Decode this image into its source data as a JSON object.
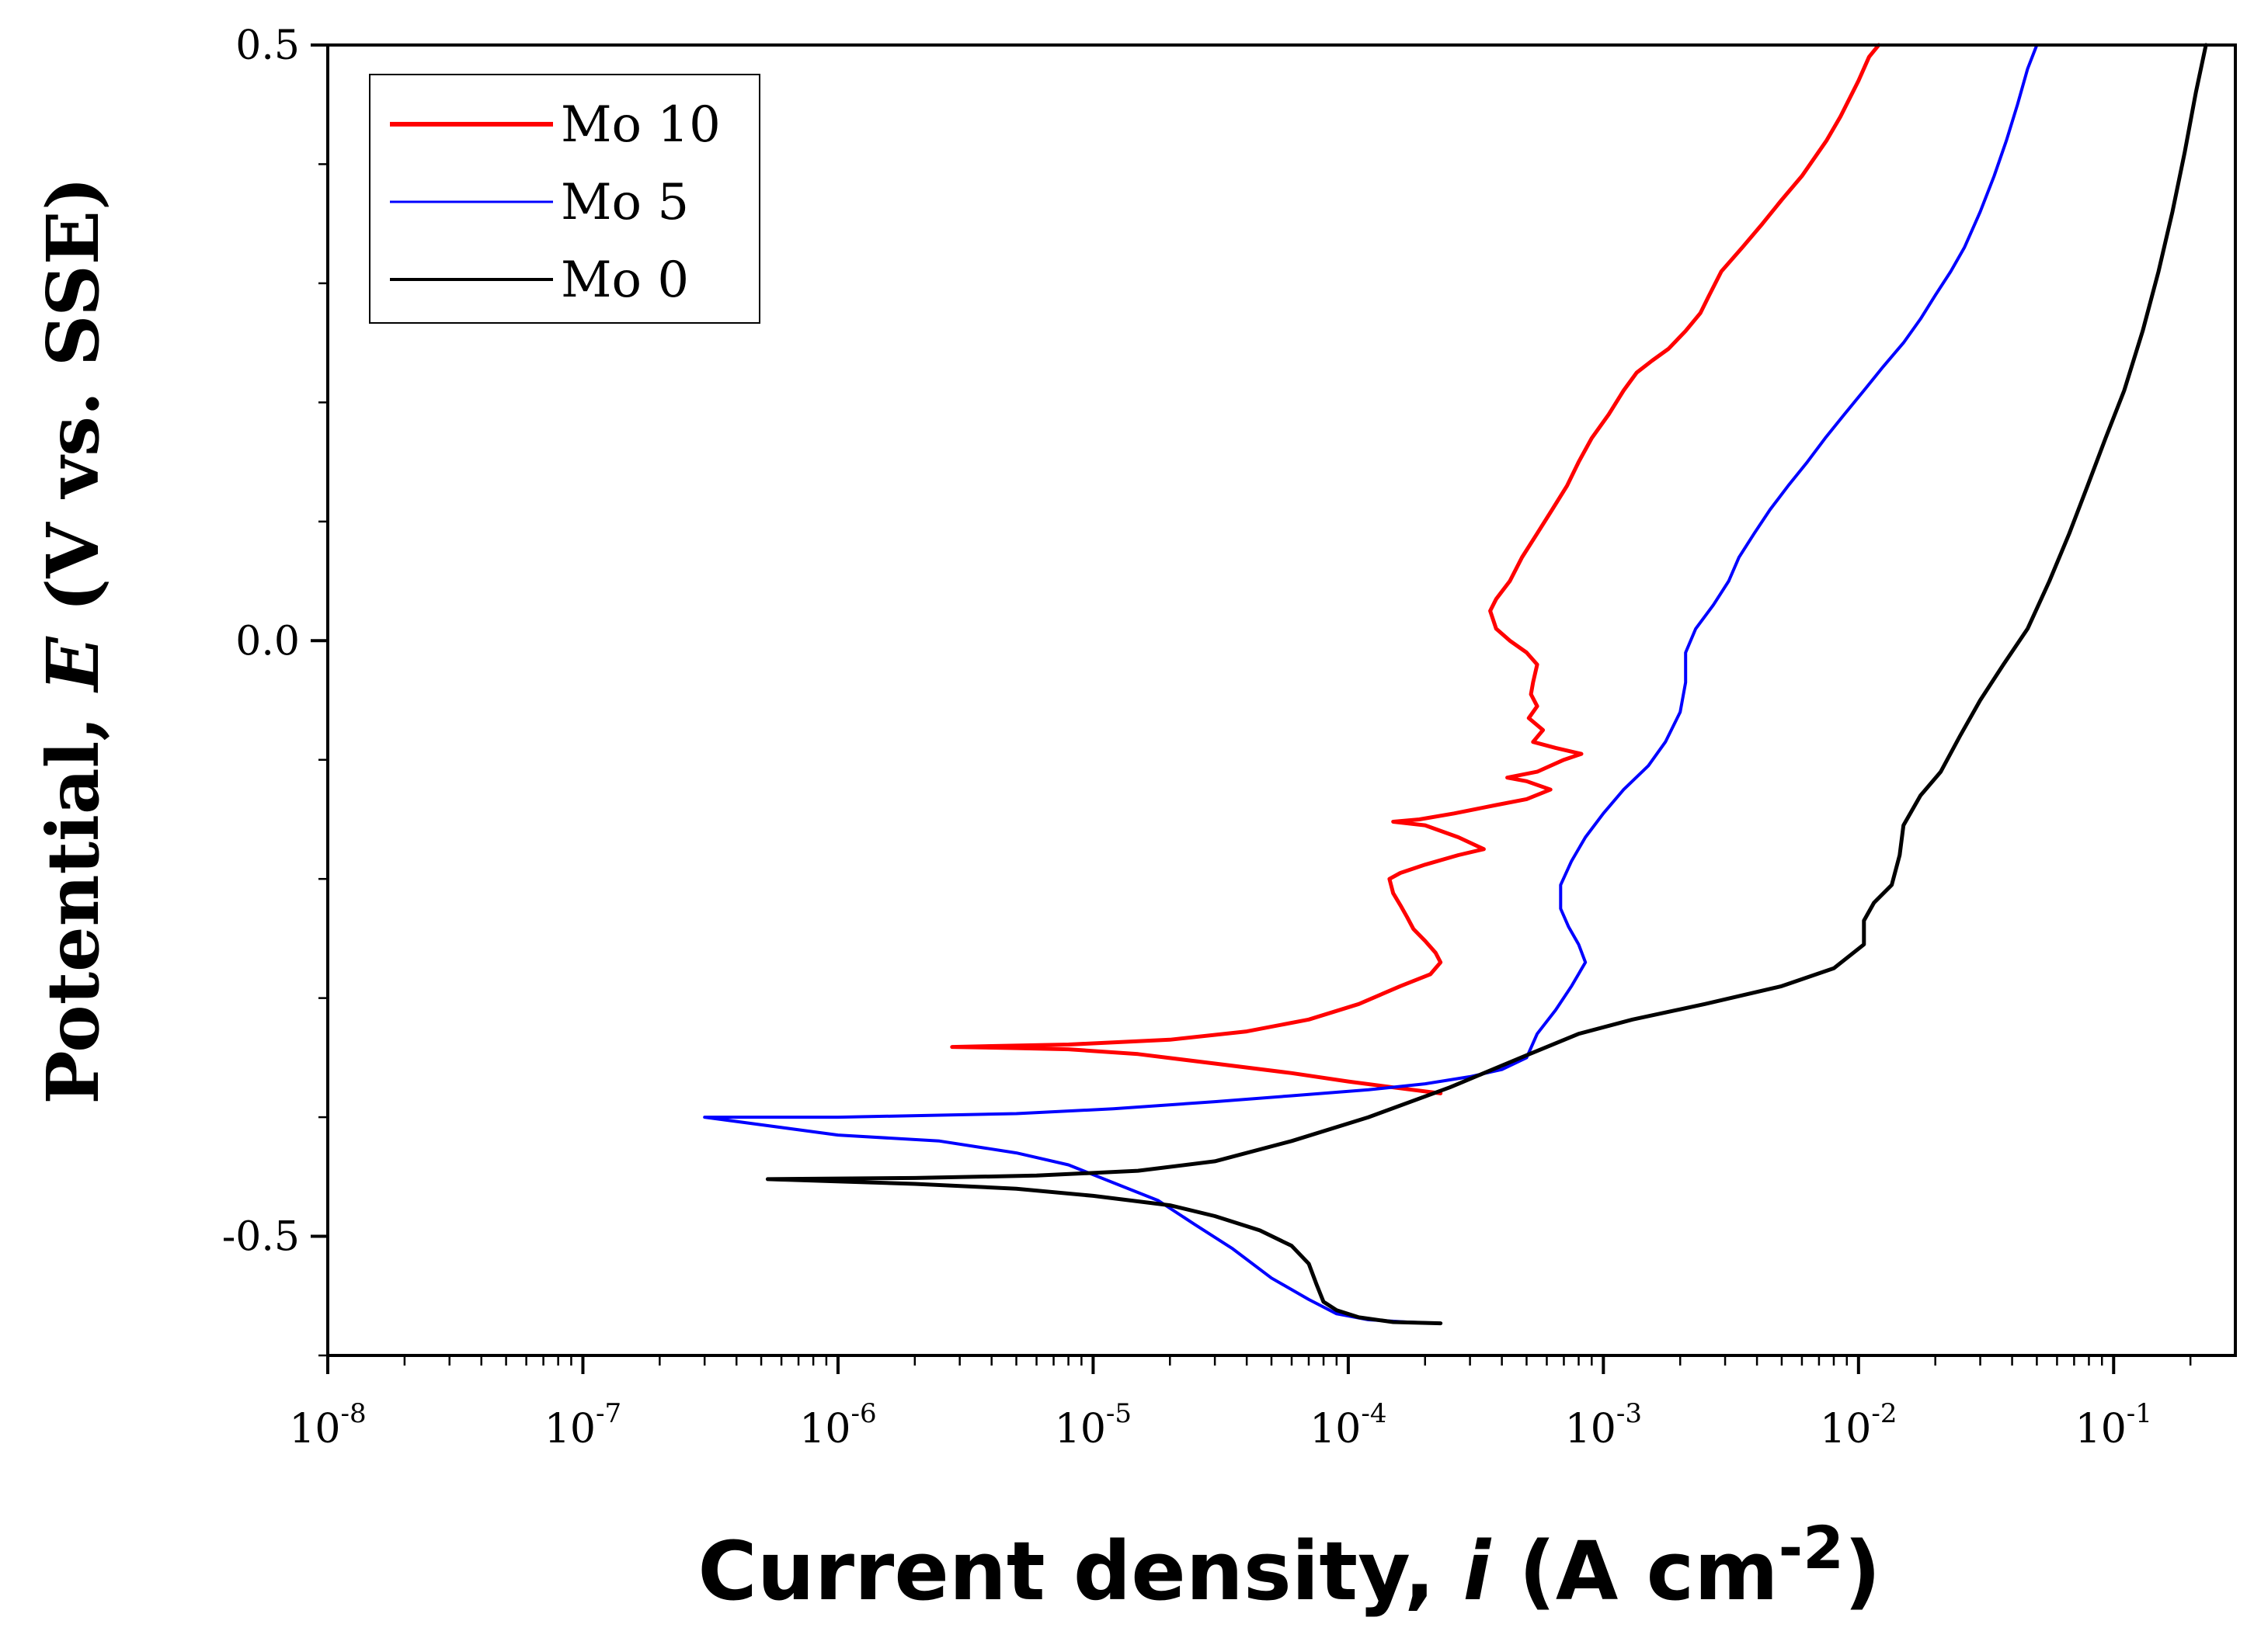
{
  "chart_data": {
    "type": "line",
    "title": "",
    "xlabel": {
      "prefix": "Current density, ",
      "variable": "i",
      "unit_open": " (A cm",
      "unit_sup": "-2",
      "unit_close": ")"
    },
    "ylabel": {
      "prefix": "Potential, ",
      "variable": "E",
      "unit": " (V vs. SSE)"
    },
    "xscale": "log",
    "xlim": [
      1e-08,
      0.3
    ],
    "ylim": [
      -0.6,
      0.5
    ],
    "x_ticks": [
      {
        "base": "10",
        "exp": "-8",
        "value": 1e-08
      },
      {
        "base": "10",
        "exp": "-7",
        "value": 1e-07
      },
      {
        "base": "10",
        "exp": "-6",
        "value": 1e-06
      },
      {
        "base": "10",
        "exp": "-5",
        "value": 1e-05
      },
      {
        "base": "10",
        "exp": "-4",
        "value": 0.0001
      },
      {
        "base": "10",
        "exp": "-3",
        "value": 0.001
      },
      {
        "base": "10",
        "exp": "-2",
        "value": 0.01
      },
      {
        "base": "10",
        "exp": "-1",
        "value": 0.1
      }
    ],
    "y_ticks": [
      {
        "label": "0.5",
        "value": 0.5
      },
      {
        "label": "0.0",
        "value": 0.0
      },
      {
        "label": "-0.5",
        "value": -0.5
      }
    ],
    "legend_position": "top-left",
    "grid": false,
    "series": [
      {
        "name": "Mo 10",
        "color": "#ff0000",
        "points": [
          [
            0.00023,
            -0.38
          ],
          [
            0.00015,
            -0.375
          ],
          [
            0.0001,
            -0.37
          ],
          [
            6e-05,
            -0.363
          ],
          [
            3e-05,
            -0.355
          ],
          [
            1.5e-05,
            -0.347
          ],
          [
            8e-06,
            -0.343
          ],
          [
            5e-06,
            -0.342
          ],
          [
            2.8e-06,
            -0.341
          ],
          [
            8e-06,
            -0.339
          ],
          [
            2e-05,
            -0.335
          ],
          [
            4e-05,
            -0.328
          ],
          [
            7e-05,
            -0.318
          ],
          [
            0.00011,
            -0.305
          ],
          [
            0.00016,
            -0.29
          ],
          [
            0.00021,
            -0.28
          ],
          [
            0.00023,
            -0.27
          ],
          [
            0.00022,
            -0.262
          ],
          [
            0.0002,
            -0.252
          ],
          [
            0.00018,
            -0.242
          ],
          [
            0.00017,
            -0.232
          ],
          [
            0.00016,
            -0.222
          ],
          [
            0.00015,
            -0.212
          ],
          [
            0.000145,
            -0.2
          ],
          [
            0.00016,
            -0.195
          ],
          [
            0.0002,
            -0.188
          ],
          [
            0.00027,
            -0.18
          ],
          [
            0.00034,
            -0.175
          ],
          [
            0.00027,
            -0.165
          ],
          [
            0.0002,
            -0.155
          ],
          [
            0.00015,
            -0.152
          ],
          [
            0.00019,
            -0.15
          ],
          [
            0.00026,
            -0.145
          ],
          [
            0.00038,
            -0.138
          ],
          [
            0.0005,
            -0.133
          ],
          [
            0.00062,
            -0.125
          ],
          [
            0.0005,
            -0.118
          ],
          [
            0.00042,
            -0.115
          ],
          [
            0.00055,
            -0.11
          ],
          [
            0.0007,
            -0.1
          ],
          [
            0.00082,
            -0.095
          ],
          [
            0.00065,
            -0.09
          ],
          [
            0.00053,
            -0.085
          ],
          [
            0.00058,
            -0.075
          ],
          [
            0.00051,
            -0.065
          ],
          [
            0.00055,
            -0.055
          ],
          [
            0.00052,
            -0.045
          ],
          [
            0.00053,
            -0.035
          ],
          [
            0.00055,
            -0.02
          ],
          [
            0.0005,
            -0.01
          ],
          [
            0.00043,
            0.0
          ],
          [
            0.00038,
            0.01
          ],
          [
            0.00036,
            0.025
          ],
          [
            0.00038,
            0.035
          ],
          [
            0.00043,
            0.05
          ],
          [
            0.00048,
            0.07
          ],
          [
            0.00055,
            0.09
          ],
          [
            0.00063,
            0.11
          ],
          [
            0.00072,
            0.13
          ],
          [
            0.0008,
            0.15
          ],
          [
            0.0009,
            0.17
          ],
          [
            0.00105,
            0.19
          ],
          [
            0.0012,
            0.21
          ],
          [
            0.00135,
            0.225
          ],
          [
            0.00155,
            0.235
          ],
          [
            0.0018,
            0.245
          ],
          [
            0.0021,
            0.26
          ],
          [
            0.0024,
            0.275
          ],
          [
            0.0026,
            0.29
          ],
          [
            0.0029,
            0.31
          ],
          [
            0.0035,
            0.33
          ],
          [
            0.0042,
            0.35
          ],
          [
            0.005,
            0.37
          ],
          [
            0.006,
            0.39
          ],
          [
            0.0075,
            0.42
          ],
          [
            0.0085,
            0.44
          ],
          [
            0.01,
            0.47
          ],
          [
            0.011,
            0.49
          ],
          [
            0.012,
            0.5
          ]
        ]
      },
      {
        "name": "Mo 5",
        "color": "#0000ff",
        "points": [
          [
            0.00023,
            -0.573
          ],
          [
            0.00017,
            -0.572
          ],
          [
            0.00012,
            -0.57
          ],
          [
            9e-05,
            -0.565
          ],
          [
            7e-05,
            -0.553
          ],
          [
            5e-05,
            -0.535
          ],
          [
            3.5e-05,
            -0.51
          ],
          [
            2.5e-05,
            -0.49
          ],
          [
            1.8e-05,
            -0.47
          ],
          [
            1.2e-05,
            -0.455
          ],
          [
            8e-06,
            -0.44
          ],
          [
            5e-06,
            -0.43
          ],
          [
            2.5e-06,
            -0.42
          ],
          [
            1e-06,
            -0.415
          ],
          [
            3e-07,
            -0.4
          ],
          [
            1e-06,
            -0.4
          ],
          [
            5e-06,
            -0.397
          ],
          [
            1.2e-05,
            -0.393
          ],
          [
            3e-05,
            -0.387
          ],
          [
            6e-05,
            -0.382
          ],
          [
            0.00012,
            -0.377
          ],
          [
            0.0002,
            -0.372
          ],
          [
            0.0003,
            -0.366
          ],
          [
            0.0004,
            -0.36
          ],
          [
            0.0005,
            -0.35
          ],
          [
            0.00055,
            -0.33
          ],
          [
            0.00065,
            -0.31
          ],
          [
            0.00075,
            -0.29
          ],
          [
            0.00085,
            -0.27
          ],
          [
            0.0008,
            -0.255
          ],
          [
            0.00073,
            -0.24
          ],
          [
            0.00068,
            -0.225
          ],
          [
            0.00068,
            -0.205
          ],
          [
            0.00075,
            -0.185
          ],
          [
            0.00085,
            -0.165
          ],
          [
            0.001,
            -0.145
          ],
          [
            0.0012,
            -0.125
          ],
          [
            0.0015,
            -0.105
          ],
          [
            0.00175,
            -0.085
          ],
          [
            0.002,
            -0.06
          ],
          [
            0.0021,
            -0.035
          ],
          [
            0.0021,
            -0.01
          ],
          [
            0.0023,
            0.01
          ],
          [
            0.0027,
            0.03
          ],
          [
            0.0031,
            0.05
          ],
          [
            0.0034,
            0.07
          ],
          [
            0.0039,
            0.09
          ],
          [
            0.0045,
            0.11
          ],
          [
            0.0053,
            0.13
          ],
          [
            0.0063,
            0.15
          ],
          [
            0.0074,
            0.17
          ],
          [
            0.0088,
            0.19
          ],
          [
            0.0105,
            0.21
          ],
          [
            0.0125,
            0.23
          ],
          [
            0.015,
            0.25
          ],
          [
            0.0175,
            0.27
          ],
          [
            0.02,
            0.29
          ],
          [
            0.023,
            0.31
          ],
          [
            0.026,
            0.33
          ],
          [
            0.03,
            0.36
          ],
          [
            0.034,
            0.39
          ],
          [
            0.038,
            0.42
          ],
          [
            0.042,
            0.45
          ],
          [
            0.046,
            0.48
          ],
          [
            0.05,
            0.5
          ]
        ]
      },
      {
        "name": "Mo 0",
        "color": "#000000",
        "points": [
          [
            0.00023,
            -0.573
          ],
          [
            0.00015,
            -0.572
          ],
          [
            0.00011,
            -0.568
          ],
          [
            9e-05,
            -0.562
          ],
          [
            8e-05,
            -0.555
          ],
          [
            7.5e-05,
            -0.54
          ],
          [
            7e-05,
            -0.523
          ],
          [
            6e-05,
            -0.508
          ],
          [
            4.5e-05,
            -0.495
          ],
          [
            3e-05,
            -0.483
          ],
          [
            2e-05,
            -0.474
          ],
          [
            1e-05,
            -0.466
          ],
          [
            5e-06,
            -0.46
          ],
          [
            2e-06,
            -0.456
          ],
          [
            5.3e-07,
            -0.452
          ],
          [
            2e-06,
            -0.451
          ],
          [
            6e-06,
            -0.449
          ],
          [
            1.5e-05,
            -0.445
          ],
          [
            3e-05,
            -0.437
          ],
          [
            6e-05,
            -0.42
          ],
          [
            0.00012,
            -0.4
          ],
          [
            0.00025,
            -0.375
          ],
          [
            0.0005,
            -0.348
          ],
          [
            0.0008,
            -0.33
          ],
          [
            0.0013,
            -0.318
          ],
          [
            0.0025,
            -0.305
          ],
          [
            0.005,
            -0.29
          ],
          [
            0.008,
            -0.275
          ],
          [
            0.0105,
            -0.255
          ],
          [
            0.0105,
            -0.235
          ],
          [
            0.0115,
            -0.22
          ],
          [
            0.0135,
            -0.205
          ],
          [
            0.0145,
            -0.18
          ],
          [
            0.015,
            -0.155
          ],
          [
            0.0175,
            -0.13
          ],
          [
            0.021,
            -0.11
          ],
          [
            0.025,
            -0.08
          ],
          [
            0.03,
            -0.05
          ],
          [
            0.037,
            -0.02
          ],
          [
            0.046,
            0.01
          ],
          [
            0.056,
            0.05
          ],
          [
            0.067,
            0.09
          ],
          [
            0.079,
            0.13
          ],
          [
            0.093,
            0.17
          ],
          [
            0.11,
            0.21
          ],
          [
            0.13,
            0.26
          ],
          [
            0.15,
            0.31
          ],
          [
            0.17,
            0.36
          ],
          [
            0.19,
            0.41
          ],
          [
            0.21,
            0.46
          ],
          [
            0.23,
            0.5
          ]
        ]
      }
    ]
  }
}
